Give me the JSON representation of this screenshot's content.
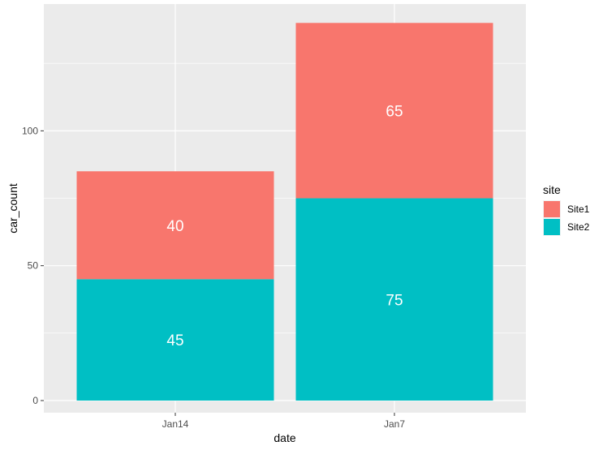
{
  "chart_data": {
    "type": "bar",
    "stacked": true,
    "categories": [
      "Jan14",
      "Jan7"
    ],
    "series": [
      {
        "name": "Site2",
        "values": [
          45,
          75
        ],
        "color": "#00BFC4"
      },
      {
        "name": "Site1",
        "values": [
          40,
          65
        ],
        "color": "#F8766D"
      }
    ],
    "xlabel": "date",
    "ylabel": "car_count",
    "ylim": [
      -4.5,
      147
    ],
    "yticks": [
      0,
      50,
      100
    ],
    "grid": true,
    "panel_background": "#EBEBEB",
    "legend": {
      "title": "site",
      "position": "right",
      "entries": [
        {
          "label": "Site1",
          "color": "#F8766D"
        },
        {
          "label": "Site2",
          "color": "#00BFC4"
        }
      ]
    }
  }
}
